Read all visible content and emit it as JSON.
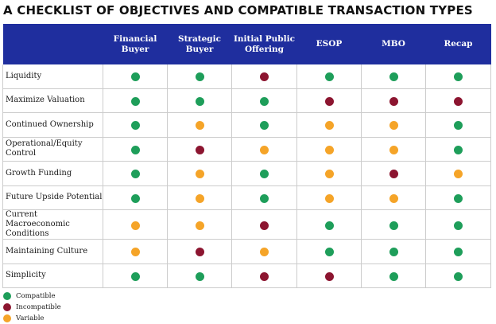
{
  "title": "A CHECKLIST OF OBJECTIVES AND COMPATIBLE TRANSACTION TYPES",
  "colors": {
    "header_bg": "#1f2e9e",
    "compatible": "#1e9e5a",
    "incompatible": "#8c1530",
    "variable": "#f5a428"
  },
  "columns": [
    "",
    "Financial Buyer",
    "Strategic Buyer",
    "Initial Public Offering",
    "ESOP",
    "MBO",
    "Recap"
  ],
  "rows": [
    {
      "label": "Liquidity",
      "values": [
        "compatible",
        "compatible",
        "incompatible",
        "compatible",
        "compatible",
        "compatible"
      ]
    },
    {
      "label": "Maximize Valuation",
      "values": [
        "compatible",
        "compatible",
        "compatible",
        "incompatible",
        "incompatible",
        "incompatible"
      ]
    },
    {
      "label": "Continued Ownership",
      "values": [
        "compatible",
        "variable",
        "compatible",
        "variable",
        "variable",
        "compatible"
      ]
    },
    {
      "label": "Operational/Equity Control",
      "values": [
        "compatible",
        "incompatible",
        "variable",
        "variable",
        "variable",
        "compatible"
      ]
    },
    {
      "label": "Growth Funding",
      "values": [
        "compatible",
        "variable",
        "compatible",
        "variable",
        "incompatible",
        "variable"
      ]
    },
    {
      "label": "Future Upside Potential",
      "values": [
        "compatible",
        "variable",
        "compatible",
        "variable",
        "variable",
        "compatible"
      ]
    },
    {
      "label": "Current Macroeconomic Conditions",
      "values": [
        "variable",
        "variable",
        "incompatible",
        "compatible",
        "compatible",
        "compatible"
      ]
    },
    {
      "label": "Maintaining Culture",
      "values": [
        "variable",
        "incompatible",
        "variable",
        "compatible",
        "compatible",
        "compatible"
      ]
    },
    {
      "label": "Simplicity",
      "values": [
        "compatible",
        "compatible",
        "incompatible",
        "incompatible",
        "compatible",
        "compatible"
      ]
    }
  ],
  "legend": [
    {
      "key": "compatible",
      "label": "Compatible"
    },
    {
      "key": "incompatible",
      "label": "Incompatible"
    },
    {
      "key": "variable",
      "label": "Variable"
    }
  ]
}
